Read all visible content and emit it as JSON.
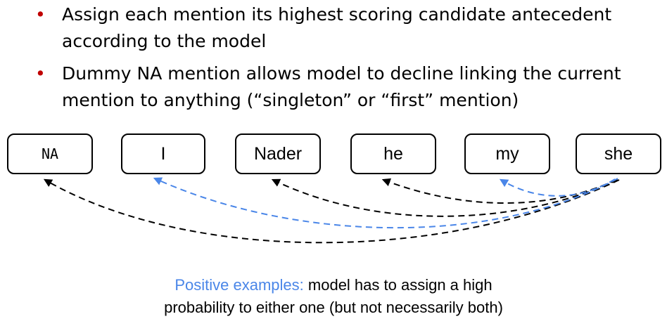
{
  "bullets": [
    {
      "bullet_glyph": "•",
      "text_line1": "Assign each mention its highest scoring candidate antecedent",
      "text_line2": "according to the model"
    },
    {
      "bullet_glyph": "•",
      "text_line1": "Dummy NA mention allows model to decline linking the current",
      "text_line2": "mention to anything (“singleton” or “first” mention)"
    }
  ],
  "mentions": [
    "NA",
    "I",
    "Nader",
    "he",
    "my",
    "she"
  ],
  "caption": {
    "highlight": "Positive examples:",
    "rest_line1": " model has to assign a high",
    "line2": "probability to either one (but not necessarily both)"
  },
  "colors": {
    "bullet": "#c00000",
    "positive": "#4a86e8",
    "negative": "#000000"
  }
}
